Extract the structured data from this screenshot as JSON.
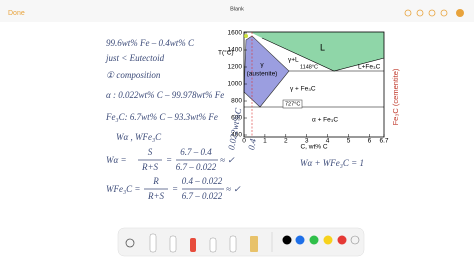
{
  "toolbar": {
    "done": "Done",
    "title": "Blank"
  },
  "notes": {
    "line1": "99.6wt% Fe – 0.4wt% C",
    "line2": "just < Eutectoid",
    "line3": "① composition",
    "line4": "α : 0.022wt% C – 99.978wt% Fe",
    "line5": "Fe₃C: 6.7wt% C – 93.3wt% Fe",
    "line6": "Wα , WFe₃C",
    "w_alpha": {
      "lhs": "Wα =",
      "frac1_num": "S",
      "frac1_den": "R+S",
      "eq": "=",
      "frac2_num": "6.7 – 0.4",
      "frac2_den": "6.7 – 0.022",
      "tail": "≈ ✓"
    },
    "w_fe3c": {
      "lhs": "WFe₃C =",
      "frac1_num": "R",
      "frac1_den": "R+S",
      "eq": "=",
      "frac2_num": "0.4 – 0.022",
      "frac2_den": "6.7 – 0.022",
      "tail": "≈ ✓"
    },
    "sum": "Wα + WFe₃C = 1",
    "side1": "0.022wt%C",
    "side2": "0.4"
  },
  "diagram": {
    "y_axis_title": "T(°C)",
    "yticks": [
      "1600",
      "1400",
      "1200",
      "1000",
      "800",
      "600",
      "400"
    ],
    "xticks": [
      "0",
      "1",
      "2",
      "3",
      "4",
      "5",
      "6",
      "6.7"
    ],
    "x_axis_title": "C, wt% C",
    "regions": {
      "liquid": "L",
      "gamma_liquid": "γ+L",
      "gamma": "γ",
      "austenite": "(austenite)",
      "eutectic_temp": "1148°C",
      "liquid_fe3c": "L+Fe₃C",
      "gamma_fe3c": "γ + Fe₃C",
      "eutectoid_temp": "727°C",
      "alpha_fe3c": "α + Fe₃C"
    },
    "right_label": "Fe₃C (cementite)"
  }
}
